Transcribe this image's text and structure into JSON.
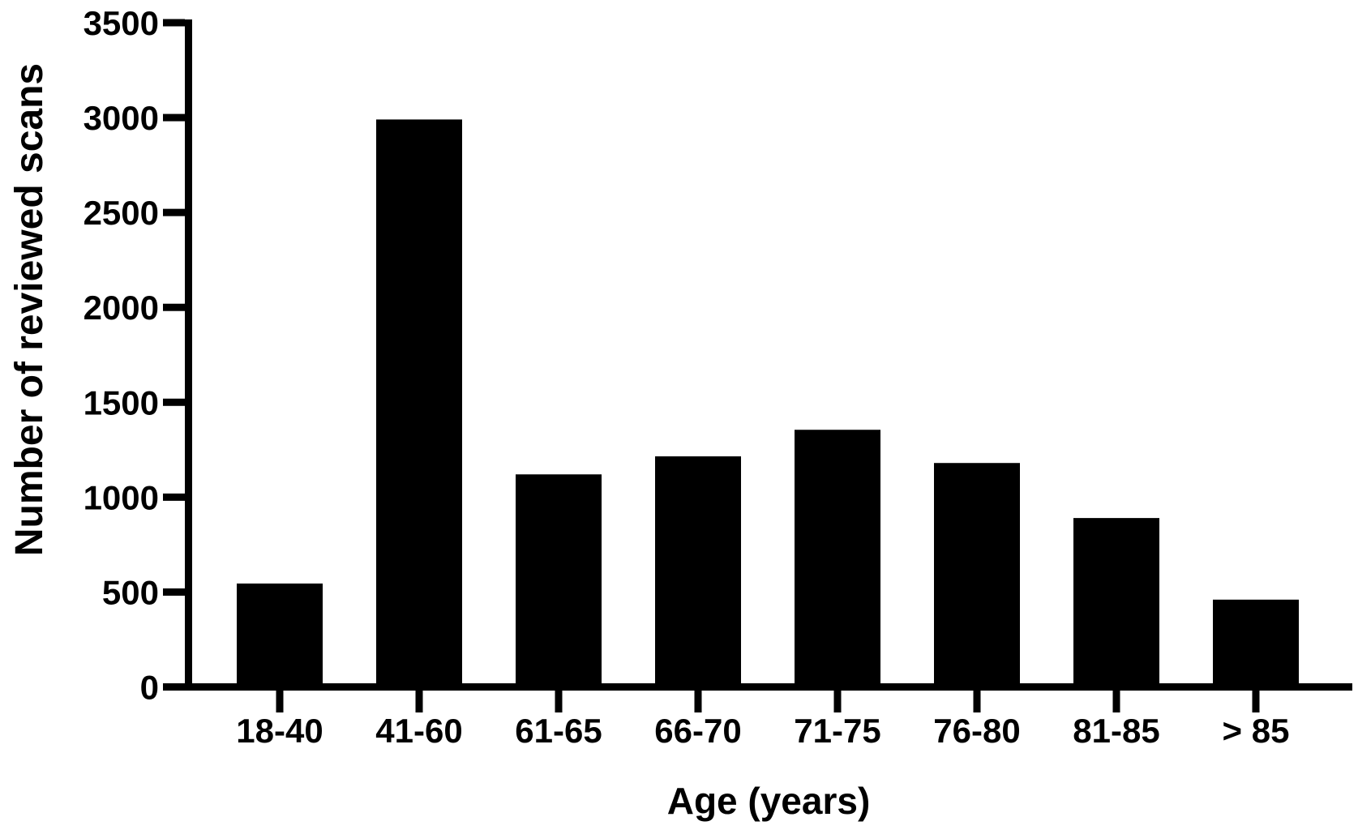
{
  "figure": {
    "background_color": "#ffffff",
    "ink_color": "#000000"
  },
  "chart_data": {
    "type": "bar",
    "title": "",
    "xlabel": "Age (years)",
    "ylabel": "Number of reviewed scans",
    "categories": [
      "18-40",
      "41-60",
      "61-65",
      "66-70",
      "71-75",
      "76-80",
      "81-85",
      "> 85"
    ],
    "values": [
      545,
      2990,
      1120,
      1215,
      1355,
      1180,
      890,
      460
    ],
    "ylim": [
      0,
      3500
    ],
    "ytick_interval": 500,
    "yticks": [
      0,
      500,
      1000,
      1500,
      2000,
      2500,
      3000,
      3500
    ],
    "bar_color": "#000000",
    "axis_color": "#000000",
    "grid": false,
    "legend": null
  }
}
